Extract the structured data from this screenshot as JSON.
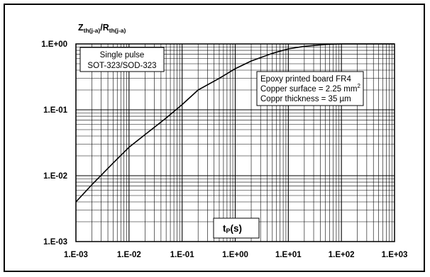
{
  "chart_data": {
    "type": "line",
    "x_scale": "log",
    "y_scale": "log",
    "xlim": [
      0.001,
      1000
    ],
    "ylim": [
      0.001,
      1
    ],
    "x_ticks": [
      "1.E-03",
      "1.E-02",
      "1.E-01",
      "1.E+00",
      "1.E+01",
      "1.E+02",
      "1.E+03"
    ],
    "y_ticks": [
      "1.E-03",
      "1.E-02",
      "1.E-01",
      "1.E+00"
    ],
    "grid": true,
    "ylabel": {
      "main1": "Z",
      "sub1": "th(j-a)",
      "slash": "/",
      "main2": "R",
      "sub2": "th(j-a)"
    },
    "xlabel": {
      "main": "t",
      "sub": "P",
      "rest": "(s)"
    },
    "annotations": {
      "box1": [
        "Single pulse",
        "SOT-323/SOD-323"
      ],
      "box2": {
        "line1": "Epoxy printed board FR4",
        "line2": "Copper surface = 2.25 mm",
        "line2_sup": "2",
        "line3": "Coppr thickness = 35 µm"
      }
    },
    "series": [
      {
        "x": [
          0.001,
          0.002,
          0.005,
          0.01,
          0.02,
          0.05,
          0.1,
          0.2,
          0.5,
          1,
          2,
          5,
          10,
          20,
          50,
          100,
          200,
          500,
          1000
        ],
        "y": [
          0.004,
          0.0073,
          0.0155,
          0.027,
          0.042,
          0.075,
          0.12,
          0.2,
          0.3,
          0.42,
          0.55,
          0.72,
          0.84,
          0.92,
          0.98,
          1.0,
          1.0,
          1.0,
          1.0
        ]
      }
    ]
  }
}
